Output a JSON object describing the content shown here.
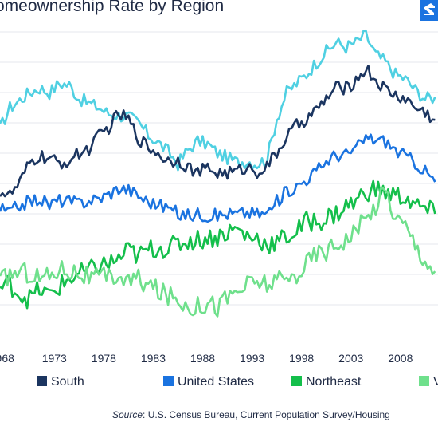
{
  "title": "omeownership Rate by Region",
  "source_label": "Source",
  "source_text": ": U.S. Census Bureau, Current Population Survey/Housing",
  "colors": {
    "south": "#1b3560",
    "united_states": "#1a73e0",
    "northeast": "#14bf4b",
    "west": "#6fe08c",
    "midwest": "#4fd0e2",
    "grid": "#e4e7ec",
    "axis_text": "#1f2a44"
  },
  "legend": [
    "South",
    "United States",
    "Northeast",
    "V"
  ],
  "chart_data": {
    "type": "line",
    "title": "omeownership Rate by Region",
    "x_ticks": [
      "968",
      "1973",
      "1978",
      "1983",
      "1988",
      "1993",
      "1998",
      "2003",
      "2008"
    ],
    "x_range": [
      1967.5,
      2011.8
    ],
    "y_range": [
      56,
      76
    ],
    "grid": true,
    "legend_position": "bottom",
    "series": [
      {
        "name": "",
        "color_key": "midwest",
        "points": [
          [
            1967.5,
            69.6
          ],
          [
            1968.5,
            71.0
          ],
          [
            1969.5,
            71.5
          ],
          [
            1970.5,
            72.0
          ],
          [
            1971.5,
            72.3
          ],
          [
            1972.5,
            72.0
          ],
          [
            1973.5,
            72.6
          ],
          [
            1974.5,
            72.5
          ],
          [
            1975.5,
            71.6
          ],
          [
            1976.5,
            71.3
          ],
          [
            1977.5,
            71.0
          ],
          [
            1978.5,
            70.6
          ],
          [
            1979.5,
            70.5
          ],
          [
            1980.5,
            70.4
          ],
          [
            1981.5,
            70.0
          ],
          [
            1982.5,
            69.2
          ],
          [
            1983.5,
            68.7
          ],
          [
            1984.5,
            68.1
          ],
          [
            1985.5,
            67.3
          ],
          [
            1986.5,
            68.2
          ],
          [
            1987.5,
            68.8
          ],
          [
            1988.5,
            68.6
          ],
          [
            1989.5,
            68.0
          ],
          [
            1990.5,
            67.7
          ],
          [
            1991.5,
            67.4
          ],
          [
            1992.5,
            67.5
          ],
          [
            1993.5,
            67.3
          ],
          [
            1994.5,
            67.6
          ],
          [
            1995.5,
            70.3
          ],
          [
            1996.5,
            72.0
          ],
          [
            1997.5,
            72.6
          ],
          [
            1998.5,
            73.2
          ],
          [
            1999.5,
            74.0
          ],
          [
            2000.5,
            74.7
          ],
          [
            2001.5,
            75.3
          ],
          [
            2002.5,
            75.0
          ],
          [
            2003.5,
            75.3
          ],
          [
            2004.5,
            75.8
          ],
          [
            2005.5,
            74.5
          ],
          [
            2006.5,
            74.0
          ],
          [
            2007.5,
            73.2
          ],
          [
            2008.5,
            72.9
          ],
          [
            2009.5,
            72.2
          ],
          [
            2010.5,
            71.6
          ],
          [
            2011.5,
            71.7
          ]
        ]
      },
      {
        "name": "South",
        "color_key": "south",
        "points": [
          [
            1967.5,
            65.5
          ],
          [
            1968.5,
            65.2
          ],
          [
            1969.5,
            66.0
          ],
          [
            1970.5,
            67.3
          ],
          [
            1971.5,
            67.8
          ],
          [
            1972.5,
            67.6
          ],
          [
            1973.5,
            67.3
          ],
          [
            1974.5,
            67.5
          ],
          [
            1975.5,
            68.0
          ],
          [
            1976.5,
            68.3
          ],
          [
            1977.5,
            69.1
          ],
          [
            1978.5,
            69.7
          ],
          [
            1979.5,
            70.6
          ],
          [
            1980.5,
            70.2
          ],
          [
            1981.5,
            69.0
          ],
          [
            1982.5,
            68.4
          ],
          [
            1983.5,
            68.0
          ],
          [
            1984.5,
            67.5
          ],
          [
            1985.5,
            67.6
          ],
          [
            1986.5,
            67.1
          ],
          [
            1987.5,
            66.7
          ],
          [
            1988.5,
            67.0
          ],
          [
            1989.5,
            66.7
          ],
          [
            1990.5,
            66.7
          ],
          [
            1991.5,
            66.8
          ],
          [
            1992.5,
            67.1
          ],
          [
            1993.5,
            66.8
          ],
          [
            1994.5,
            67.1
          ],
          [
            1995.5,
            68.0
          ],
          [
            1996.5,
            69.1
          ],
          [
            1997.5,
            69.8
          ],
          [
            1998.5,
            70.3
          ],
          [
            1999.5,
            70.8
          ],
          [
            2000.5,
            71.6
          ],
          [
            2001.5,
            72.3
          ],
          [
            2002.5,
            72.3
          ],
          [
            2003.5,
            72.8
          ],
          [
            2004.5,
            73.6
          ],
          [
            2005.5,
            72.8
          ],
          [
            2006.5,
            72.2
          ],
          [
            2007.5,
            71.8
          ],
          [
            2008.5,
            71.6
          ],
          [
            2009.5,
            71.0
          ],
          [
            2010.5,
            70.7
          ],
          [
            2011.5,
            70.2
          ]
        ]
      },
      {
        "name": "United States",
        "color_key": "united_states",
        "points": [
          [
            1967.5,
            64.3
          ],
          [
            1968.5,
            64.1
          ],
          [
            1969.5,
            64.6
          ],
          [
            1970.5,
            64.8
          ],
          [
            1971.5,
            65.0
          ],
          [
            1972.5,
            64.6
          ],
          [
            1973.5,
            64.9
          ],
          [
            1974.5,
            64.8
          ],
          [
            1975.5,
            64.7
          ],
          [
            1976.5,
            64.9
          ],
          [
            1977.5,
            65.0
          ],
          [
            1978.5,
            65.3
          ],
          [
            1979.5,
            65.7
          ],
          [
            1980.5,
            65.6
          ],
          [
            1981.5,
            65.2
          ],
          [
            1982.5,
            64.8
          ],
          [
            1983.5,
            64.6
          ],
          [
            1984.5,
            64.4
          ],
          [
            1985.5,
            64.0
          ],
          [
            1986.5,
            63.9
          ],
          [
            1987.5,
            64.0
          ],
          [
            1988.5,
            63.9
          ],
          [
            1989.5,
            63.9
          ],
          [
            1990.5,
            64.0
          ],
          [
            1991.5,
            64.0
          ],
          [
            1992.5,
            64.1
          ],
          [
            1993.5,
            64.0
          ],
          [
            1994.5,
            64.0
          ],
          [
            1995.5,
            64.8
          ],
          [
            1996.5,
            65.5
          ],
          [
            1997.5,
            65.8
          ],
          [
            1998.5,
            66.3
          ],
          [
            1999.5,
            66.8
          ],
          [
            2000.5,
            67.5
          ],
          [
            2001.5,
            67.9
          ],
          [
            2002.5,
            67.9
          ],
          [
            2003.5,
            68.3
          ],
          [
            2004.5,
            69.0
          ],
          [
            2005.5,
            68.9
          ],
          [
            2006.5,
            68.8
          ],
          [
            2007.5,
            68.2
          ],
          [
            2008.5,
            67.8
          ],
          [
            2009.5,
            67.4
          ],
          [
            2010.5,
            66.8
          ],
          [
            2011.5,
            66.1
          ]
        ]
      },
      {
        "name": "Northeast",
        "color_key": "northeast",
        "points": [
          [
            1967.5,
            59.1
          ],
          [
            1968.5,
            59.4
          ],
          [
            1969.5,
            58.7
          ],
          [
            1970.5,
            58.4
          ],
          [
            1971.5,
            59.0
          ],
          [
            1972.5,
            58.6
          ],
          [
            1973.5,
            59.2
          ],
          [
            1974.5,
            59.7
          ],
          [
            1975.5,
            60.0
          ],
          [
            1976.5,
            60.2
          ],
          [
            1977.5,
            60.6
          ],
          [
            1978.5,
            60.7
          ],
          [
            1979.5,
            61.0
          ],
          [
            1980.5,
            61.6
          ],
          [
            1981.5,
            61.2
          ],
          [
            1982.5,
            61.6
          ],
          [
            1983.5,
            61.8
          ],
          [
            1984.5,
            61.7
          ],
          [
            1985.5,
            62.0
          ],
          [
            1986.5,
            62.2
          ],
          [
            1987.5,
            62.3
          ],
          [
            1988.5,
            62.4
          ],
          [
            1989.5,
            62.5
          ],
          [
            1990.5,
            62.8
          ],
          [
            1991.5,
            63.0
          ],
          [
            1992.5,
            62.5
          ],
          [
            1993.5,
            62.4
          ],
          [
            1994.5,
            62.0
          ],
          [
            1995.5,
            62.1
          ],
          [
            1996.5,
            62.5
          ],
          [
            1997.5,
            62.8
          ],
          [
            1998.5,
            63.5
          ],
          [
            1999.5,
            63.5
          ],
          [
            2000.5,
            63.7
          ],
          [
            2001.5,
            64.0
          ],
          [
            2002.5,
            64.5
          ],
          [
            2003.5,
            64.8
          ],
          [
            2004.5,
            65.5
          ],
          [
            2005.5,
            65.6
          ],
          [
            2006.5,
            65.4
          ],
          [
            2007.5,
            65.2
          ],
          [
            2008.5,
            65.1
          ],
          [
            2009.5,
            64.5
          ],
          [
            2010.5,
            64.3
          ],
          [
            2011.5,
            64.0
          ]
        ]
      },
      {
        "name": "V",
        "color_key": "west",
        "points": [
          [
            1967.5,
            59.5
          ],
          [
            1968.5,
            60.0
          ],
          [
            1969.5,
            60.2
          ],
          [
            1970.5,
            60.1
          ],
          [
            1971.5,
            59.8
          ],
          [
            1972.5,
            59.9
          ],
          [
            1973.5,
            60.4
          ],
          [
            1974.5,
            60.3
          ],
          [
            1975.5,
            60.1
          ],
          [
            1976.5,
            59.8
          ],
          [
            1977.5,
            59.7
          ],
          [
            1978.5,
            59.8
          ],
          [
            1979.5,
            59.9
          ],
          [
            1980.5,
            59.5
          ],
          [
            1981.5,
            59.7
          ],
          [
            1982.5,
            59.3
          ],
          [
            1983.5,
            58.9
          ],
          [
            1984.5,
            58.6
          ],
          [
            1985.5,
            58.3
          ],
          [
            1986.5,
            58.0
          ],
          [
            1987.5,
            57.9
          ],
          [
            1988.5,
            58.2
          ],
          [
            1989.5,
            57.9
          ],
          [
            1990.5,
            58.5
          ],
          [
            1991.5,
            58.9
          ],
          [
            1992.5,
            59.3
          ],
          [
            1993.5,
            59.5
          ],
          [
            1994.5,
            59.4
          ],
          [
            1995.5,
            59.5
          ],
          [
            1996.5,
            59.6
          ],
          [
            1997.5,
            60.0
          ],
          [
            1998.5,
            60.7
          ],
          [
            1999.5,
            61.4
          ],
          [
            2000.5,
            61.6
          ],
          [
            2001.5,
            62.0
          ],
          [
            2002.5,
            62.4
          ],
          [
            2003.5,
            62.9
          ],
          [
            2004.5,
            63.6
          ],
          [
            2005.5,
            64.6
          ],
          [
            2006.5,
            65.6
          ],
          [
            2007.5,
            63.8
          ],
          [
            2008.5,
            63.2
          ],
          [
            2009.5,
            62.0
          ],
          [
            2010.5,
            61.0
          ],
          [
            2011.5,
            60.2
          ]
        ]
      }
    ]
  }
}
